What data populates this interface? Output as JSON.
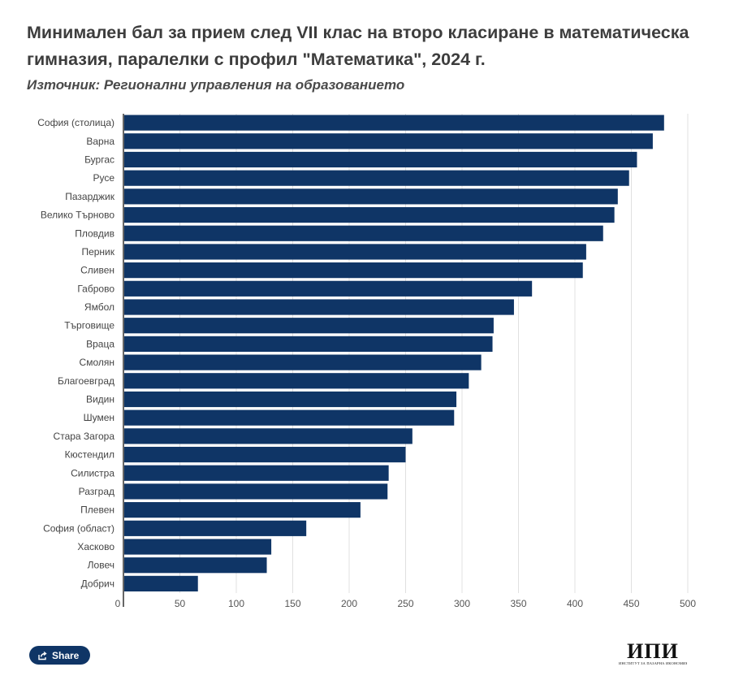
{
  "title": "Минимален бал за прием след VII клас на второ класиране в математическа гимназия, паралелки с профил \"Математика\", 2024 г.",
  "subtitle": "Източник: Регионални управления на образованието",
  "share_label": "Share",
  "logo": {
    "text": "ИПИ",
    "subtext": "ИНСТИТУТ ЗА ПАЗАРНА ИКОНОМИКА"
  },
  "colors": {
    "bar": "#0f3566",
    "grid": "#e0e0e0",
    "axis": "#333333"
  },
  "chart_data": {
    "type": "bar",
    "orientation": "horizontal",
    "categories": [
      "София (столица)",
      "Варна",
      "Бургас",
      "Русе",
      "Пазарджик",
      "Велико Търново",
      "Пловдив",
      "Перник",
      "Сливен",
      "Габрово",
      "Ямбол",
      "Търговище",
      "Враца",
      "Смолян",
      "Благоевград",
      "Видин",
      "Шумен",
      "Стара Загора",
      "Кюстендил",
      "Силистра",
      "Разград",
      "Плевен",
      "София (област)",
      "Хасково",
      "Ловеч",
      "Добрич"
    ],
    "values": [
      479,
      469,
      455,
      448,
      438,
      435,
      425,
      410,
      407,
      362,
      346,
      328,
      327,
      317,
      306,
      295,
      293,
      256,
      250,
      235,
      234,
      210,
      162,
      131,
      127,
      66
    ],
    "xlim": [
      0,
      500
    ],
    "xticks": [
      0,
      50,
      100,
      150,
      200,
      250,
      300,
      350,
      400,
      450,
      500
    ],
    "grid": true,
    "legend": false
  }
}
